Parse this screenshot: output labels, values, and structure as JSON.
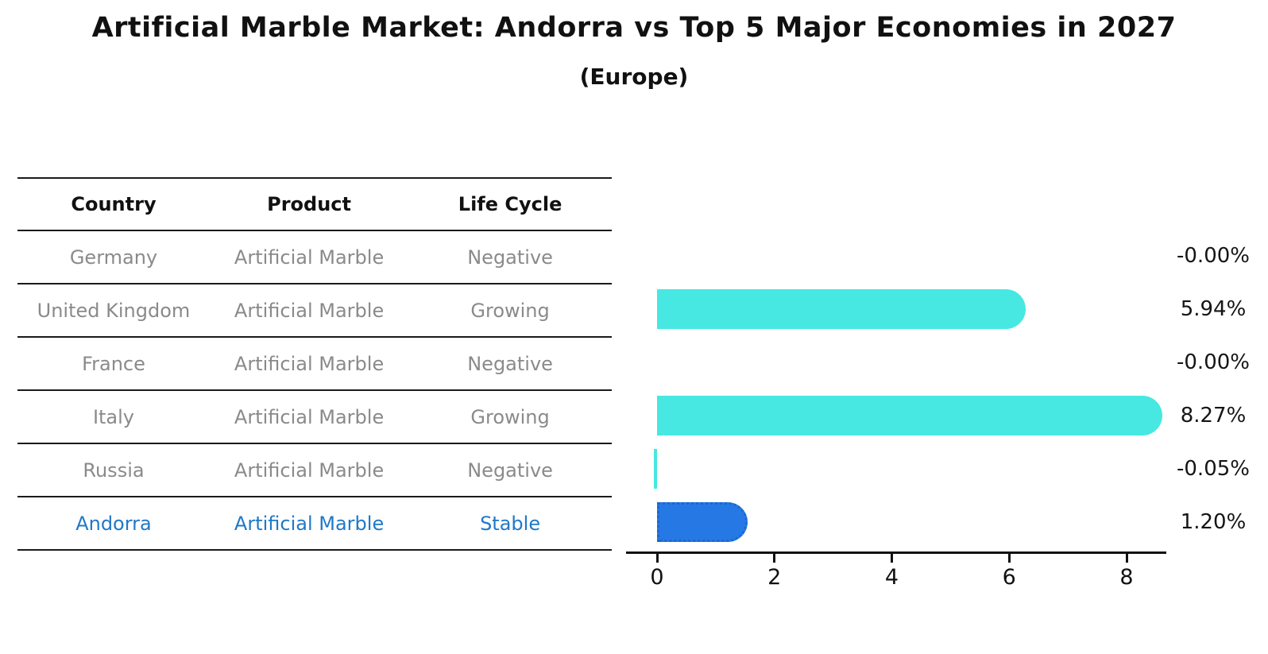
{
  "title": "Artificial Marble Market: Andorra vs Top 5 Major Economies in 2027",
  "subtitle": "(Europe)",
  "table": {
    "headers": [
      "Country",
      "Product",
      "Life Cycle"
    ],
    "rows": [
      {
        "country": "Germany",
        "product": "Artificial Marble",
        "life_cycle": "Negative"
      },
      {
        "country": "United Kingdom",
        "product": "Artificial Marble",
        "life_cycle": "Growing"
      },
      {
        "country": "France",
        "product": "Artificial Marble",
        "life_cycle": "Negative"
      },
      {
        "country": "Italy",
        "product": "Artificial Marble",
        "life_cycle": "Growing"
      },
      {
        "country": "Russia",
        "product": "Artificial Marble",
        "life_cycle": "Negative"
      },
      {
        "country": "Andorra",
        "product": "Artificial Marble",
        "life_cycle": "Stable"
      }
    ]
  },
  "chart_data": {
    "type": "bar",
    "orientation": "horizontal",
    "title": "Artificial Marble Market: Andorra vs Top 5 Major Economies in 2027",
    "subtitle": "(Europe)",
    "categories": [
      "Germany",
      "United Kingdom",
      "France",
      "Italy",
      "Russia",
      "Andorra"
    ],
    "values": [
      -0.0,
      5.94,
      -0.0,
      8.27,
      -0.05,
      1.2
    ],
    "value_labels": [
      "-0.00%",
      "5.94%",
      "-0.00%",
      "8.27%",
      "-0.05%",
      "1.20%"
    ],
    "xlabel": "",
    "ylabel": "",
    "xlim": [
      0,
      8.7
    ],
    "xticks": [
      0,
      2,
      4,
      6,
      8
    ],
    "grid": false,
    "legend": "none",
    "bar_color": "#46E8E1",
    "highlight_color": "#2679E4",
    "highlight_index": 5,
    "unit": "%"
  }
}
